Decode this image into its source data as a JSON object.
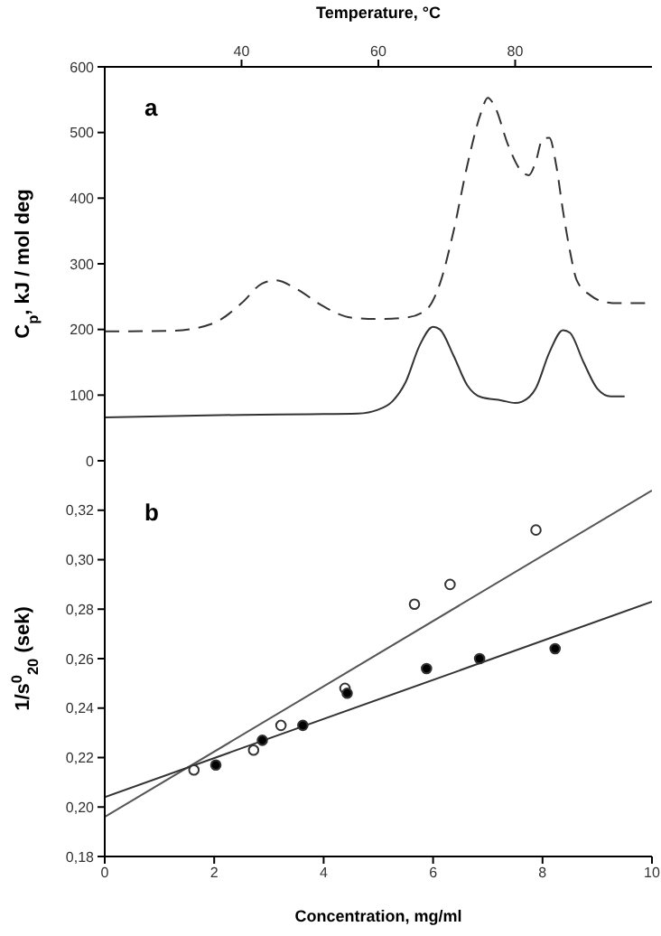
{
  "chart_data": [
    {
      "type": "line",
      "xlabel": "Temperature, °C",
      "ylabel": "C$_{p}$, kJ / mol deg",
      "annotations": [
        "a"
      ],
      "xlim": [
        20,
        100
      ],
      "xticks": [
        40,
        60,
        80
      ],
      "ylim": [
        0,
        600
      ],
      "yticks": [
        0,
        100,
        200,
        300,
        400,
        500,
        600
      ],
      "series": [
        {
          "color": "#333333",
          "line_style": "dashed",
          "x": [
            20,
            30,
            36,
            40,
            43,
            45,
            48,
            52,
            56,
            60,
            64,
            67,
            69,
            71,
            73,
            75,
            76,
            77,
            79,
            81,
            82,
            83,
            84,
            85,
            86,
            87,
            88,
            89,
            91,
            93,
            95,
            100
          ],
          "values": [
            197,
            198,
            210,
            240,
            270,
            275,
            262,
            235,
            218,
            216,
            218,
            230,
            270,
            350,
            450,
            530,
            553,
            540,
            480,
            440,
            435,
            455,
            490,
            492,
            450,
            380,
            320,
            275,
            252,
            242,
            240,
            240
          ]
        },
        {
          "color": "#333333",
          "line_style": "solid",
          "x": [
            20,
            30,
            40,
            50,
            57,
            60,
            62,
            64,
            66,
            68,
            69,
            71,
            73,
            75,
            78,
            80,
            81,
            83,
            85,
            87,
            88,
            90,
            92,
            94,
            96
          ],
          "values": [
            66,
            68,
            70,
            71,
            72,
            78,
            90,
            120,
            175,
            204,
            200,
            160,
            115,
            97,
            92,
            88,
            90,
            110,
            165,
            199,
            195,
            150,
            110,
            98,
            98
          ]
        }
      ]
    },
    {
      "type": "scatter",
      "xlabel": "Concentration, mg/ml",
      "ylabel": "1/s$^{0}$$_{20}$ (sek)",
      "annotations": [
        "b"
      ],
      "xlim": [
        0,
        10
      ],
      "xticks": [
        0,
        2,
        4,
        6,
        8,
        10
      ],
      "ylim": [
        0.18,
        0.34
      ],
      "yticks": [
        {
          "value": 0.18,
          "label": "0,18"
        },
        {
          "value": 0.2,
          "label": "0,20"
        },
        {
          "value": 0.22,
          "label": "0,22"
        },
        {
          "value": 0.24,
          "label": "0,24"
        },
        {
          "value": 0.26,
          "label": "0,26"
        },
        {
          "value": 0.28,
          "label": "0,28"
        },
        {
          "value": 0.3,
          "label": "0,30"
        },
        {
          "value": 0.32,
          "label": "0,32"
        }
      ],
      "series": [
        {
          "color": "#ffffff",
          "marker": "circle",
          "x": [
            1.63,
            2.72,
            3.22,
            4.39,
            5.66,
            6.31,
            7.88
          ],
          "values": [
            0.215,
            0.223,
            0.233,
            0.248,
            0.282,
            0.29,
            0.312
          ]
        },
        {
          "color": "#000000",
          "marker": "circle",
          "x": [
            2.03,
            2.88,
            3.62,
            4.43,
            5.88,
            6.85,
            8.23
          ],
          "values": [
            0.217,
            0.227,
            0.233,
            0.246,
            0.256,
            0.26,
            0.264
          ]
        },
        {
          "type": "line",
          "color": "#555555",
          "line_style": "solid",
          "x": [
            0,
            10
          ],
          "values": [
            0.196,
            0.328
          ]
        },
        {
          "type": "line",
          "color": "#333333",
          "line_style": "solid",
          "x": [
            0,
            10
          ],
          "values": [
            0.204,
            0.283
          ]
        }
      ]
    }
  ]
}
